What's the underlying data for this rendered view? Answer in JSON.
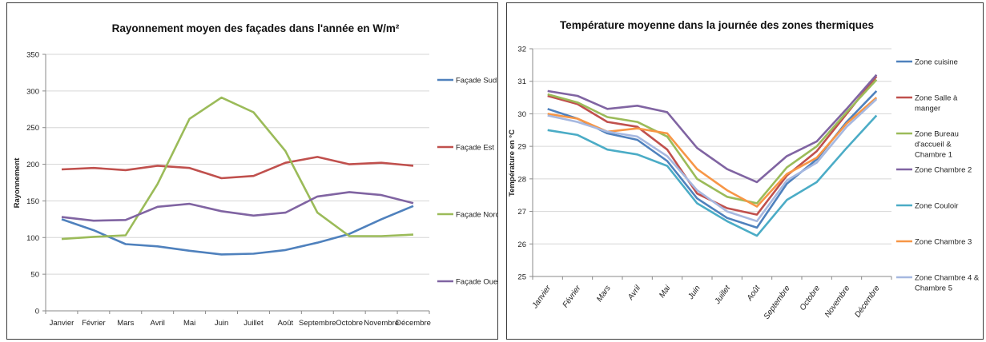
{
  "chart_data": [
    {
      "type": "line",
      "title": "Rayonnement moyen des façades dans l'année en W/m²",
      "xlabel": "",
      "ylabel": "Rayonnement",
      "ylim": [
        0,
        350
      ],
      "yticks": [
        0,
        50,
        100,
        150,
        200,
        250,
        300,
        350
      ],
      "grid": true,
      "legend_position": "right",
      "categories": [
        "Janvier",
        "Février",
        "Mars",
        "Avril",
        "Mai",
        "Juin",
        "Juillet",
        "Août",
        "Septembre",
        "Octobre",
        "Novembre",
        "Décembre"
      ],
      "series": [
        {
          "name": "Façade Sud",
          "color": "#4f81bd",
          "values": [
            125,
            110,
            91,
            88,
            82,
            77,
            78,
            83,
            93,
            105,
            125,
            143
          ]
        },
        {
          "name": "Façade Est",
          "color": "#c0504d",
          "values": [
            193,
            195,
            192,
            198,
            195,
            181,
            184,
            202,
            210,
            200,
            202,
            198
          ]
        },
        {
          "name": "Façade Nord",
          "color": "#9bbb59",
          "values": [
            98,
            101,
            103,
            173,
            262,
            291,
            271,
            218,
            134,
            102,
            102,
            104
          ]
        },
        {
          "name": "Façade Ouest",
          "color": "#8064a2",
          "values": [
            128,
            123,
            124,
            142,
            146,
            136,
            130,
            134,
            156,
            162,
            158,
            147
          ]
        }
      ]
    },
    {
      "type": "line",
      "title": "Température moyenne dans la journée des zones thermiques",
      "xlabel": "",
      "ylabel": "Température en °C",
      "ylim": [
        25,
        32
      ],
      "yticks": [
        25,
        26,
        27,
        28,
        29,
        30,
        31,
        32
      ],
      "grid": true,
      "legend_position": "right",
      "categories": [
        "Janvier",
        "Février",
        "Mars",
        "Avril",
        "Mai",
        "Juin",
        "Juillet",
        "Août",
        "Septembre",
        "Octobre",
        "Novembre",
        "Décembre"
      ],
      "series": [
        {
          "name": "Zone cuisine",
          "color": "#4f81bd",
          "values": [
            30.15,
            29.85,
            29.4,
            29.2,
            28.55,
            27.4,
            26.8,
            26.5,
            27.85,
            28.6,
            29.75,
            30.7
          ]
        },
        {
          "name": "Zone Salle à manger",
          "color": "#c0504d",
          "values": [
            30.55,
            30.3,
            29.75,
            29.6,
            28.9,
            27.55,
            27.1,
            26.9,
            28.1,
            28.85,
            30.0,
            31.15
          ]
        },
        {
          "name": "Zone Bureau d'accueil & Chambre 1",
          "color": "#9bbb59",
          "values": [
            30.6,
            30.35,
            29.9,
            29.75,
            29.3,
            28.0,
            27.45,
            27.25,
            28.35,
            29.0,
            30.05,
            31.05
          ]
        },
        {
          "name": "Zone Chambre 2",
          "color": "#8064a2",
          "values": [
            30.7,
            30.55,
            30.15,
            30.25,
            30.05,
            28.95,
            28.3,
            27.9,
            28.7,
            29.15,
            30.15,
            31.2
          ]
        },
        {
          "name": "Zone Couloir",
          "color": "#4bacc6",
          "values": [
            29.5,
            29.35,
            28.9,
            28.75,
            28.4,
            27.25,
            26.7,
            26.25,
            27.35,
            27.9,
            28.95,
            29.95
          ]
        },
        {
          "name": "Zone Chambre 3",
          "color": "#f79646",
          "values": [
            30.0,
            29.85,
            29.45,
            29.55,
            29.4,
            28.3,
            27.65,
            27.15,
            28.15,
            28.65,
            29.7,
            30.5
          ]
        },
        {
          "name": "Zone Chambre 4 & Chambre 5",
          "color": "#a6b8e0",
          "values": [
            29.95,
            29.75,
            29.45,
            29.3,
            28.7,
            27.65,
            27.0,
            26.7,
            27.95,
            28.5,
            29.6,
            30.45
          ]
        }
      ]
    }
  ]
}
